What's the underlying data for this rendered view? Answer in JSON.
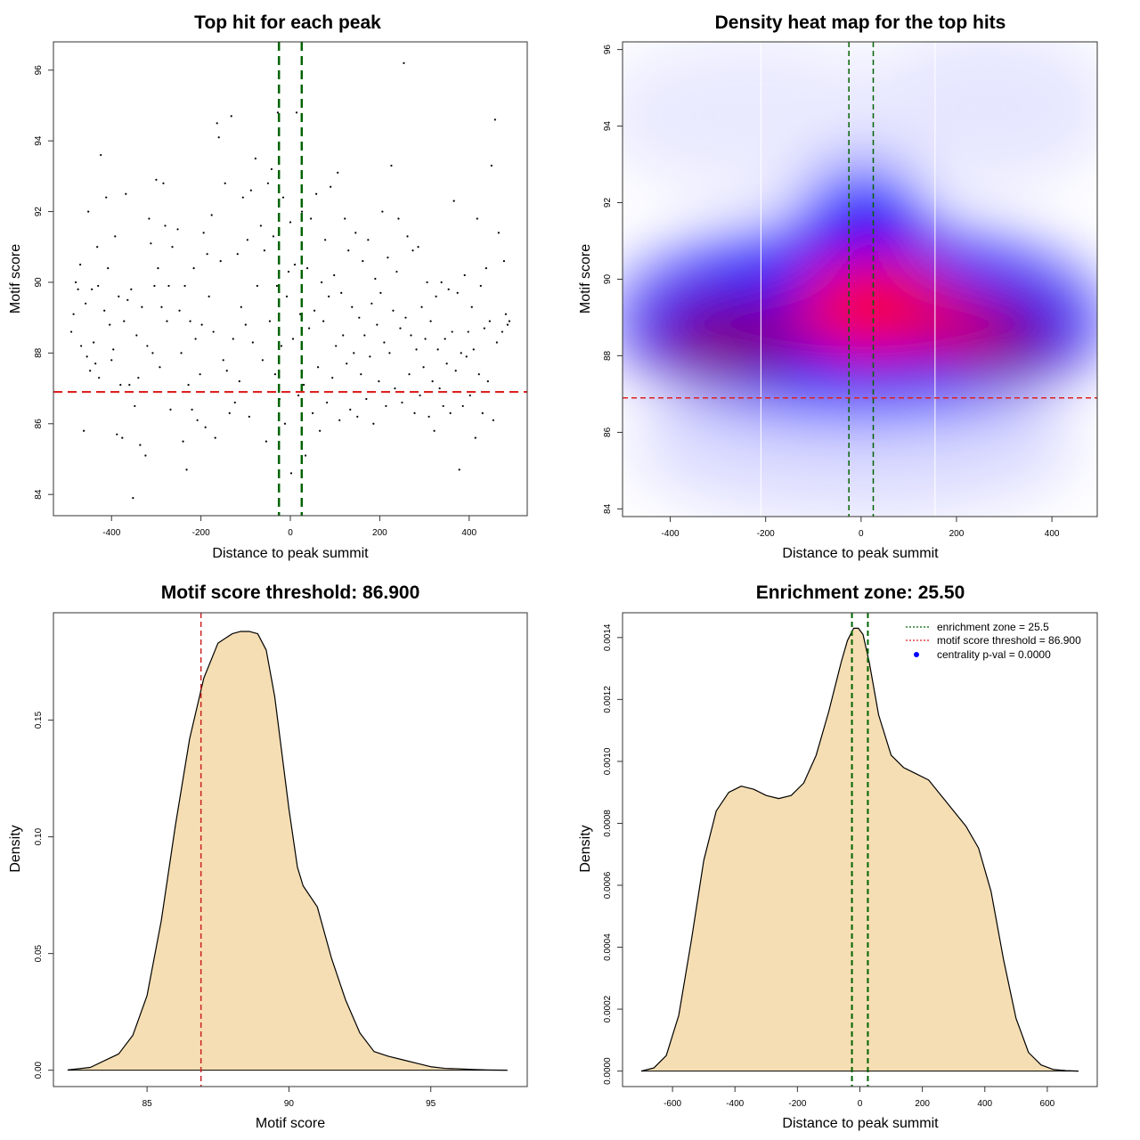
{
  "chart_data": [
    {
      "type": "scatter",
      "title": "Top hit for each peak",
      "xlabel": "Distance to peak summit",
      "ylabel": "Motif score",
      "xlim": [
        -530,
        530
      ],
      "ylim": [
        83.4,
        96.8
      ],
      "xticks": [
        -400,
        -200,
        0,
        200,
        400
      ],
      "yticks": [
        84,
        86,
        88,
        90,
        92,
        94,
        96
      ],
      "vlines": [
        -25.5,
        25.5
      ],
      "hline": 86.9,
      "vline_color": "#006400",
      "hline_color": "#dd2222",
      "point_color": "#000000",
      "points": [
        [
          -490,
          88.6
        ],
        [
          -485,
          89.1
        ],
        [
          -480,
          90.0
        ],
        [
          -475,
          89.8
        ],
        [
          -470,
          90.5
        ],
        [
          -468,
          88.2
        ],
        [
          -462,
          85.8
        ],
        [
          -458,
          89.4
        ],
        [
          -455,
          87.9
        ],
        [
          -452,
          92.0
        ],
        [
          -448,
          87.5
        ],
        [
          -444,
          89.8
        ],
        [
          -440,
          88.3
        ],
        [
          -436,
          87.7
        ],
        [
          -432,
          91.0
        ],
        [
          -430,
          89.9
        ],
        [
          -428,
          87.3
        ],
        [
          -424,
          93.6
        ],
        [
          -420,
          86.9
        ],
        [
          -416,
          89.2
        ],
        [
          -412,
          92.4
        ],
        [
          -408,
          90.4
        ],
        [
          -404,
          88.8
        ],
        [
          -400,
          87.8
        ],
        [
          -396,
          88.1
        ],
        [
          -392,
          91.3
        ],
        [
          -388,
          85.7
        ],
        [
          -384,
          89.6
        ],
        [
          -380,
          87.1
        ],
        [
          -376,
          85.6
        ],
        [
          -372,
          88.9
        ],
        [
          -368,
          92.5
        ],
        [
          -364,
          89.5
        ],
        [
          -360,
          87.1
        ],
        [
          -356,
          89.8
        ],
        [
          -352,
          83.9
        ],
        [
          -348,
          86.5
        ],
        [
          -344,
          88.5
        ],
        [
          -340,
          87.3
        ],
        [
          -336,
          85.4
        ],
        [
          -332,
          89.3
        ],
        [
          -328,
          86.9
        ],
        [
          -324,
          85.1
        ],
        [
          -320,
          88.2
        ],
        [
          -316,
          91.8
        ],
        [
          -312,
          91.1
        ],
        [
          -308,
          88.0
        ],
        [
          -304,
          89.9
        ],
        [
          -300,
          92.9
        ],
        [
          -296,
          90.4
        ],
        [
          -292,
          87.6
        ],
        [
          -288,
          89.3
        ],
        [
          -284,
          92.8
        ],
        [
          -280,
          91.6
        ],
        [
          -276,
          88.9
        ],
        [
          -272,
          89.9
        ],
        [
          -268,
          86.4
        ],
        [
          -264,
          91.0
        ],
        [
          -258,
          86.9
        ],
        [
          -252,
          91.5
        ],
        [
          -248,
          89.2
        ],
        [
          -244,
          88.0
        ],
        [
          -240,
          85.5
        ],
        [
          -236,
          89.9
        ],
        [
          -232,
          84.7
        ],
        [
          -228,
          87.1
        ],
        [
          -224,
          88.9
        ],
        [
          -220,
          86.4
        ],
        [
          -216,
          90.4
        ],
        [
          -212,
          88.4
        ],
        [
          -208,
          86.1
        ],
        [
          -202,
          87.4
        ],
        [
          -198,
          88.8
        ],
        [
          -194,
          91.4
        ],
        [
          -190,
          85.9
        ],
        [
          -186,
          90.8
        ],
        [
          -182,
          89.6
        ],
        [
          -176,
          91.9
        ],
        [
          -172,
          88.6
        ],
        [
          -168,
          85.6
        ],
        [
          -164,
          94.5
        ],
        [
          -160,
          94.1
        ],
        [
          -156,
          90.6
        ],
        [
          -150,
          87.8
        ],
        [
          -146,
          92.8
        ],
        [
          -142,
          87.5
        ],
        [
          -136,
          86.3
        ],
        [
          -132,
          94.7
        ],
        [
          -128,
          88.4
        ],
        [
          -124,
          86.6
        ],
        [
          -118,
          90.8
        ],
        [
          -114,
          87.2
        ],
        [
          -110,
          89.3
        ],
        [
          -106,
          92.4
        ],
        [
          -100,
          88.8
        ],
        [
          -96,
          91.2
        ],
        [
          -92,
          86.2
        ],
        [
          -88,
          92.6
        ],
        [
          -84,
          88.3
        ],
        [
          -78,
          93.5
        ],
        [
          -74,
          89.9
        ],
        [
          -70,
          86.9
        ],
        [
          -66,
          91.6
        ],
        [
          -62,
          87.8
        ],
        [
          -58,
          90.9
        ],
        [
          -54,
          85.5
        ],
        [
          -50,
          92.8
        ],
        [
          -46,
          88.9
        ],
        [
          -42,
          93.2
        ],
        [
          -38,
          91.3
        ],
        [
          -34,
          87.4
        ],
        [
          -30,
          89.9
        ],
        [
          -28,
          94.8
        ],
        [
          -24,
          86.7
        ],
        [
          -20,
          88.2
        ],
        [
          -16,
          92.4
        ],
        [
          -12,
          86.0
        ],
        [
          -8,
          89.6
        ],
        [
          -4,
          90.3
        ],
        [
          0,
          91.7
        ],
        [
          2,
          84.6
        ],
        [
          6,
          88.4
        ],
        [
          10,
          90.5
        ],
        [
          14,
          94.8
        ],
        [
          18,
          86.8
        ],
        [
          22,
          89.1
        ],
        [
          26,
          92.0
        ],
        [
          30,
          87.1
        ],
        [
          34,
          85.1
        ],
        [
          38,
          90.4
        ],
        [
          42,
          88.7
        ],
        [
          46,
          91.8
        ],
        [
          50,
          86.3
        ],
        [
          54,
          89.2
        ],
        [
          58,
          92.5
        ],
        [
          62,
          87.6
        ],
        [
          66,
          85.8
        ],
        [
          70,
          90.0
        ],
        [
          74,
          88.9
        ],
        [
          78,
          91.2
        ],
        [
          82,
          86.6
        ],
        [
          86,
          89.6
        ],
        [
          90,
          92.7
        ],
        [
          94,
          87.3
        ],
        [
          98,
          90.2
        ],
        [
          102,
          88.2
        ],
        [
          106,
          93.1
        ],
        [
          110,
          86.1
        ],
        [
          114,
          89.7
        ],
        [
          118,
          88.5
        ],
        [
          122,
          91.8
        ],
        [
          126,
          87.7
        ],
        [
          130,
          90.9
        ],
        [
          134,
          86.4
        ],
        [
          138,
          89.3
        ],
        [
          142,
          88.0
        ],
        [
          146,
          91.4
        ],
        [
          150,
          86.2
        ],
        [
          154,
          89.0
        ],
        [
          158,
          87.4
        ],
        [
          162,
          90.6
        ],
        [
          166,
          88.5
        ],
        [
          170,
          86.7
        ],
        [
          174,
          91.2
        ],
        [
          178,
          87.9
        ],
        [
          182,
          89.4
        ],
        [
          186,
          86.0
        ],
        [
          190,
          90.1
        ],
        [
          194,
          88.8
        ],
        [
          198,
          87.2
        ],
        [
          202,
          89.7
        ],
        [
          206,
          92.0
        ],
        [
          210,
          88.3
        ],
        [
          214,
          86.5
        ],
        [
          218,
          90.7
        ],
        [
          222,
          88.0
        ],
        [
          226,
          93.3
        ],
        [
          230,
          89.2
        ],
        [
          234,
          87.0
        ],
        [
          238,
          90.3
        ],
        [
          242,
          91.8
        ],
        [
          246,
          88.7
        ],
        [
          250,
          86.6
        ],
        [
          254,
          96.2
        ],
        [
          258,
          89.0
        ],
        [
          262,
          91.3
        ],
        [
          266,
          87.4
        ],
        [
          270,
          88.5
        ],
        [
          274,
          90.9
        ],
        [
          278,
          86.3
        ],
        [
          282,
          88.1
        ],
        [
          286,
          91.0
        ],
        [
          290,
          86.8
        ],
        [
          294,
          89.3
        ],
        [
          298,
          87.6
        ],
        [
          302,
          88.4
        ],
        [
          306,
          90.0
        ],
        [
          310,
          86.2
        ],
        [
          314,
          88.9
        ],
        [
          318,
          87.2
        ],
        [
          322,
          85.8
        ],
        [
          326,
          89.6
        ],
        [
          330,
          88.1
        ],
        [
          334,
          87.0
        ],
        [
          338,
          90.0
        ],
        [
          342,
          86.5
        ],
        [
          346,
          88.4
        ],
        [
          350,
          87.7
        ],
        [
          354,
          89.8
        ],
        [
          358,
          86.3
        ],
        [
          362,
          88.6
        ],
        [
          366,
          92.3
        ],
        [
          370,
          87.5
        ],
        [
          374,
          89.7
        ],
        [
          378,
          84.7
        ],
        [
          382,
          88.0
        ],
        [
          386,
          86.5
        ],
        [
          390,
          90.2
        ],
        [
          394,
          87.9
        ],
        [
          398,
          88.6
        ],
        [
          402,
          86.8
        ],
        [
          406,
          89.3
        ],
        [
          410,
          88.1
        ],
        [
          414,
          85.6
        ],
        [
          418,
          91.8
        ],
        [
          422,
          87.4
        ],
        [
          426,
          89.9
        ],
        [
          430,
          86.3
        ],
        [
          434,
          88.7
        ],
        [
          438,
          90.4
        ],
        [
          442,
          87.2
        ],
        [
          446,
          88.9
        ],
        [
          450,
          93.3
        ],
        [
          454,
          86.1
        ],
        [
          458,
          94.6
        ],
        [
          462,
          88.3
        ],
        [
          466,
          91.4
        ],
        [
          470,
          86.9
        ],
        [
          474,
          88.6
        ],
        [
          478,
          90.6
        ],
        [
          482,
          89.1
        ],
        [
          486,
          88.8
        ],
        [
          490,
          88.9
        ]
      ]
    },
    {
      "type": "heatmap",
      "title": "Density heat map for the top hits",
      "xlabel": "Distance to peak summit",
      "ylabel": "Motif score",
      "xlim": [
        -500,
        495
      ],
      "ylim": [
        83.8,
        96.2
      ],
      "xticks": [
        -400,
        -200,
        0,
        200,
        400
      ],
      "yticks": [
        84,
        86,
        88,
        90,
        92,
        94,
        96
      ],
      "vlines": [
        -25.5,
        25.5
      ],
      "hline": 86.9,
      "white_lines_x": [
        -210,
        155
      ],
      "low_color": "#ffffff",
      "mid_color": "#0000ff",
      "high_color": "#ff0000"
    },
    {
      "type": "area",
      "title": "Motif score threshold: 86.900",
      "xlabel": "Motif score",
      "ylabel": "Density",
      "xlim": [
        81.7,
        98.4
      ],
      "ylim": [
        -0.007,
        0.196
      ],
      "xticks": [
        85,
        90,
        95
      ],
      "yticks": [
        0.0,
        0.05,
        0.1,
        0.15
      ],
      "ytick_labels": [
        "0.00",
        "0.05",
        "0.10",
        "0.15"
      ],
      "vline": 86.9,
      "vline_color": "#cc2222",
      "fill_color": "#f5deb3",
      "x": [
        82.2,
        83.0,
        84.0,
        84.5,
        85.0,
        85.5,
        86.0,
        86.5,
        87.0,
        87.5,
        88.0,
        88.3,
        88.6,
        88.9,
        89.2,
        89.5,
        90.0,
        90.3,
        90.5,
        91.0,
        91.5,
        92.0,
        92.5,
        93.0,
        93.5,
        94.0,
        94.5,
        95.0,
        95.5,
        96.0,
        96.5,
        97.0,
        97.7
      ],
      "y": [
        0.0001,
        0.0012,
        0.007,
        0.015,
        0.032,
        0.064,
        0.105,
        0.142,
        0.168,
        0.183,
        0.187,
        0.188,
        0.188,
        0.187,
        0.18,
        0.16,
        0.112,
        0.087,
        0.079,
        0.07,
        0.048,
        0.03,
        0.016,
        0.008,
        0.006,
        0.0045,
        0.003,
        0.0015,
        0.0008,
        0.0006,
        0.0003,
        0.0001,
        0.0
      ]
    },
    {
      "type": "area",
      "title": "Enrichment zone: 25.50",
      "xlabel": "Distance to peak summit",
      "ylabel": "Density",
      "xlim": [
        -760,
        760
      ],
      "ylim": [
        -5e-05,
        0.00148
      ],
      "xticks": [
        -600,
        -400,
        -200,
        0,
        200,
        400,
        600
      ],
      "yticks": [
        0.0,
        0.0002,
        0.0004,
        0.0006,
        0.0008,
        0.001,
        0.0012,
        0.0014
      ],
      "ytick_labels": [
        "0.0000",
        "0.0002",
        "0.0004",
        "0.0006",
        "0.0008",
        "0.0010",
        "0.0012",
        "0.0014"
      ],
      "vlines": [
        -25.5,
        25.5
      ],
      "vline_color": "#006400",
      "fill_color": "#f5deb3",
      "x": [
        -700,
        -660,
        -620,
        -580,
        -540,
        -500,
        -460,
        -420,
        -380,
        -340,
        -300,
        -260,
        -220,
        -180,
        -140,
        -100,
        -60,
        -40,
        -20,
        -5,
        10,
        30,
        60,
        100,
        140,
        180,
        220,
        260,
        300,
        340,
        380,
        420,
        460,
        500,
        540,
        580,
        620,
        660,
        700
      ],
      "y": [
        0.0,
        1e-05,
        5e-05,
        0.00018,
        0.00042,
        0.00068,
        0.00084,
        0.0009,
        0.00092,
        0.00091,
        0.00089,
        0.00088,
        0.00089,
        0.00093,
        0.00102,
        0.00116,
        0.00132,
        0.00139,
        0.00143,
        0.00143,
        0.00141,
        0.00132,
        0.00115,
        0.00102,
        0.00098,
        0.00096,
        0.00094,
        0.00089,
        0.00084,
        0.00079,
        0.00072,
        0.00058,
        0.00036,
        0.00017,
        6e-05,
        2e-05,
        5e-06,
        1.5e-06,
        0.0
      ]
    }
  ],
  "legend": {
    "items": [
      {
        "label": "enrichment zone = 25.5",
        "color": "#006400",
        "style": "dotted-line"
      },
      {
        "label": "motif score threshold = 86.900",
        "color": "#dd2222",
        "style": "dotted-line"
      },
      {
        "label": "centrality p-val = 0.0000",
        "color": "#0000ff",
        "style": "dot"
      }
    ]
  }
}
